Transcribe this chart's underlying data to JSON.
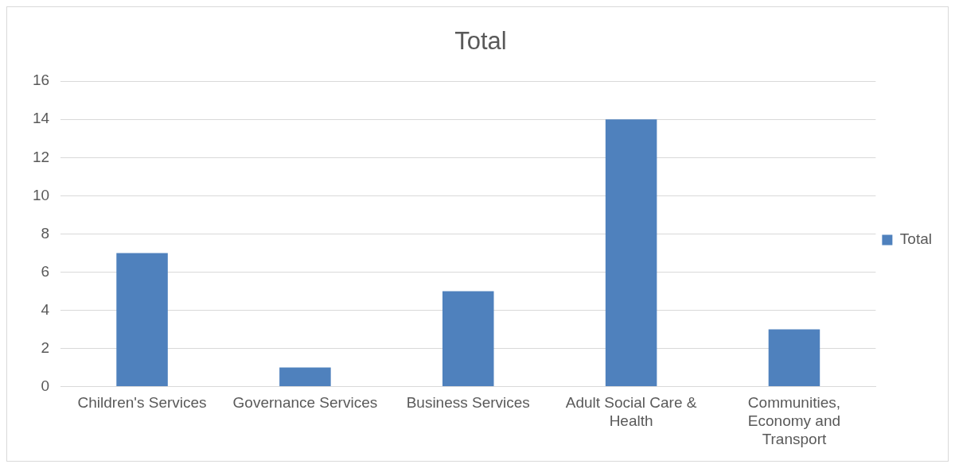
{
  "chart_data": {
    "type": "bar",
    "title": "Total",
    "categories": [
      "Children's Services",
      "Governance Services",
      "Business Services",
      "Adult Social Care & Health",
      "Communities, Economy and Transport"
    ],
    "series": [
      {
        "name": "Total",
        "color": "#4f81bd",
        "values": [
          7,
          1,
          5,
          14,
          3
        ]
      }
    ],
    "ylim": [
      0,
      16
    ],
    "yticks": [
      0,
      2,
      4,
      6,
      8,
      10,
      12,
      14,
      16
    ],
    "grid": "y",
    "legend": "right"
  }
}
